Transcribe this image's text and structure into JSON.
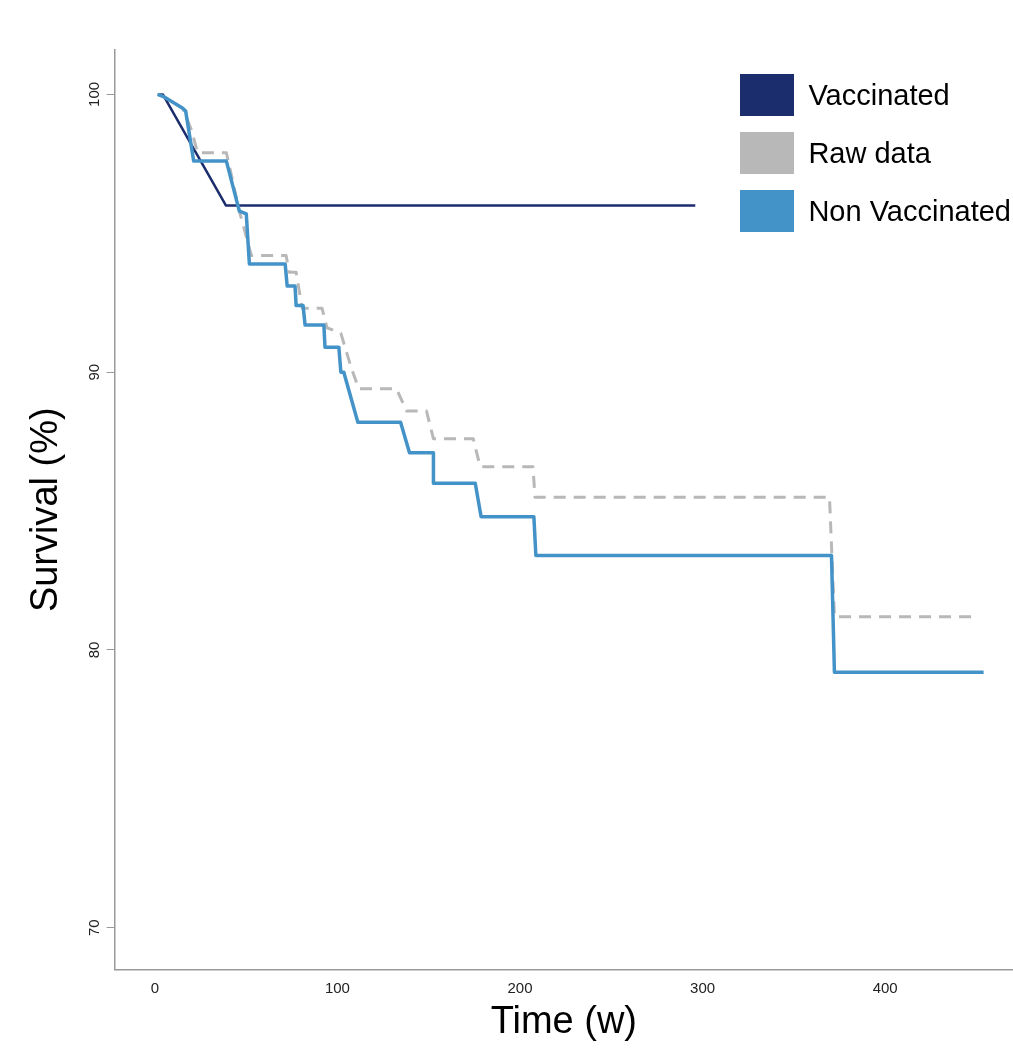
{
  "chart_data": {
    "type": "line",
    "xlabel": "Time (w)",
    "ylabel": "Survival (%)",
    "xlim": [
      -22,
      470
    ],
    "ylim": [
      68.5,
      101.6
    ],
    "xticks": [
      0,
      100,
      200,
      300,
      400
    ],
    "yticks": [
      70,
      80,
      90,
      100
    ],
    "grid": false,
    "legend": "top right",
    "marker": "none",
    "series": [
      {
        "name": "Vaccinated",
        "color": "#1c2d6e",
        "line_style": "solid",
        "x": [
          1.6,
          4.4,
          39,
          296
        ],
        "values": [
          100,
          100,
          96.0,
          96.0
        ]
      },
      {
        "name": "Raw data",
        "color": "#b8b8b8",
        "line_style": "dashed",
        "x": [
          1.6,
          5.4,
          15.3,
          20.2,
          23.4,
          39.2,
          46.3,
          52.9,
          71.9,
          73.6,
          77.4,
          80.7,
          91.6,
          94.3,
          101.9,
          107.4,
          111.7,
          132.4,
          137.9,
          148.8,
          152.6,
          174.4,
          178.2,
          207.1,
          208.2,
          369.5,
          372.2,
          448.5
        ],
        "values": [
          100,
          99.9,
          99.5,
          98.7,
          97.9,
          97.9,
          95.8,
          94.2,
          94.2,
          93.6,
          93.6,
          92.3,
          92.3,
          91.6,
          91.4,
          90.2,
          89.4,
          89.4,
          88.6,
          88.6,
          87.6,
          87.6,
          86.6,
          86.6,
          85.5,
          85.5,
          81.2,
          81.2
        ]
      },
      {
        "name": "Non Vaccinated",
        "color": "#4393c8",
        "line_style": "solid",
        "x": [
          1.6,
          5.4,
          15.3,
          16.9,
          21.3,
          39.2,
          46.3,
          50.1,
          51.8,
          71.4,
          72.5,
          76.8,
          77.4,
          81.2,
          82.3,
          92.6,
          93.2,
          100.8,
          101.9,
          103.5,
          111.2,
          134.6,
          139.5,
          152.6,
          152.6,
          175.5,
          178.7,
          207.6,
          208.7,
          370.6,
          372.2,
          453.9
        ],
        "values": [
          100,
          99.9,
          99.5,
          99.4,
          97.6,
          97.6,
          95.8,
          95.7,
          93.9,
          93.9,
          93.1,
          93.1,
          92.4,
          92.4,
          91.7,
          91.7,
          90.9,
          90.9,
          90.0,
          90.0,
          88.2,
          88.2,
          87.1,
          87.1,
          86.0,
          86.0,
          84.8,
          84.8,
          83.4,
          83.4,
          79.2,
          79.2
        ]
      }
    ]
  }
}
